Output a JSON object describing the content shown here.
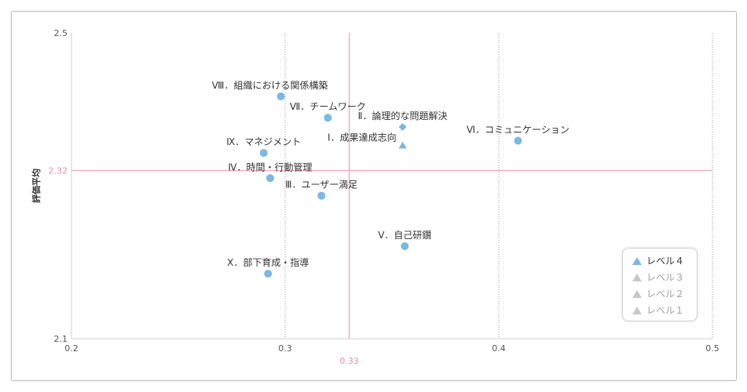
{
  "chart_data": {
    "type": "scatter",
    "ylabel": "評価平均",
    "xlabel": "",
    "xlim": [
      0.2,
      0.5
    ],
    "ylim": [
      2.1,
      2.5
    ],
    "x_ticks": [
      "0.2",
      "0.3",
      "0.4",
      "0.5"
    ],
    "y_ticks": [
      "2.1",
      "2.5"
    ],
    "reference_lines": {
      "x": {
        "value": 0.33,
        "label": "0.33",
        "color": "#f2a5bd"
      },
      "y": {
        "value": 2.32,
        "label": "2.32",
        "color": "#f2a5bd"
      }
    },
    "grid": "vertical dotted at x ticks",
    "point_color": "#7ab8e6",
    "points": [
      {
        "label": "Ⅷ．組織における関係構築",
        "x": 0.298,
        "y": 2.417,
        "shape": "circle",
        "label_pos": "above-left"
      },
      {
        "label": "Ⅶ．チームワーク",
        "x": 0.32,
        "y": 2.389,
        "shape": "circle",
        "label_pos": "above"
      },
      {
        "label": "Ⅱ．論理的な問題解決",
        "x": 0.355,
        "y": 2.377,
        "shape": "diamond",
        "label_pos": "above"
      },
      {
        "label": "Ⅵ．コミュニケーション",
        "x": 0.409,
        "y": 2.359,
        "shape": "circle",
        "label_pos": "above"
      },
      {
        "label": "Ⅰ．成果達成志向",
        "x": 0.355,
        "y": 2.353,
        "shape": "triangle",
        "label_pos": "left"
      },
      {
        "label": "Ⅸ．マネジメント",
        "x": 0.29,
        "y": 2.343,
        "shape": "circle",
        "label_pos": "above"
      },
      {
        "label": "Ⅳ．時間・行動管理",
        "x": 0.293,
        "y": 2.31,
        "shape": "circle",
        "label_pos": "above"
      },
      {
        "label": "Ⅲ．ユーザー満足",
        "x": 0.317,
        "y": 2.287,
        "shape": "circle",
        "label_pos": "above"
      },
      {
        "label": "Ⅴ．自己研鑽",
        "x": 0.356,
        "y": 2.221,
        "shape": "circle",
        "label_pos": "above"
      },
      {
        "label": "Ⅹ．部下育成・指導",
        "x": 0.292,
        "y": 2.185,
        "shape": "circle",
        "label_pos": "above"
      }
    ],
    "legend": {
      "position": "bottom-right",
      "items": [
        {
          "name": "レベル４",
          "color": "#7ab8e6",
          "text_color": "#333333"
        },
        {
          "name": "レベル３",
          "color": "#c8c8c8",
          "text_color": "#a0a0a0"
        },
        {
          "name": "レベル２",
          "color": "#c8c8c8",
          "text_color": "#a0a0a0"
        },
        {
          "name": "レベル１",
          "color": "#c8c8c8",
          "text_color": "#a0a0a0"
        }
      ]
    }
  }
}
